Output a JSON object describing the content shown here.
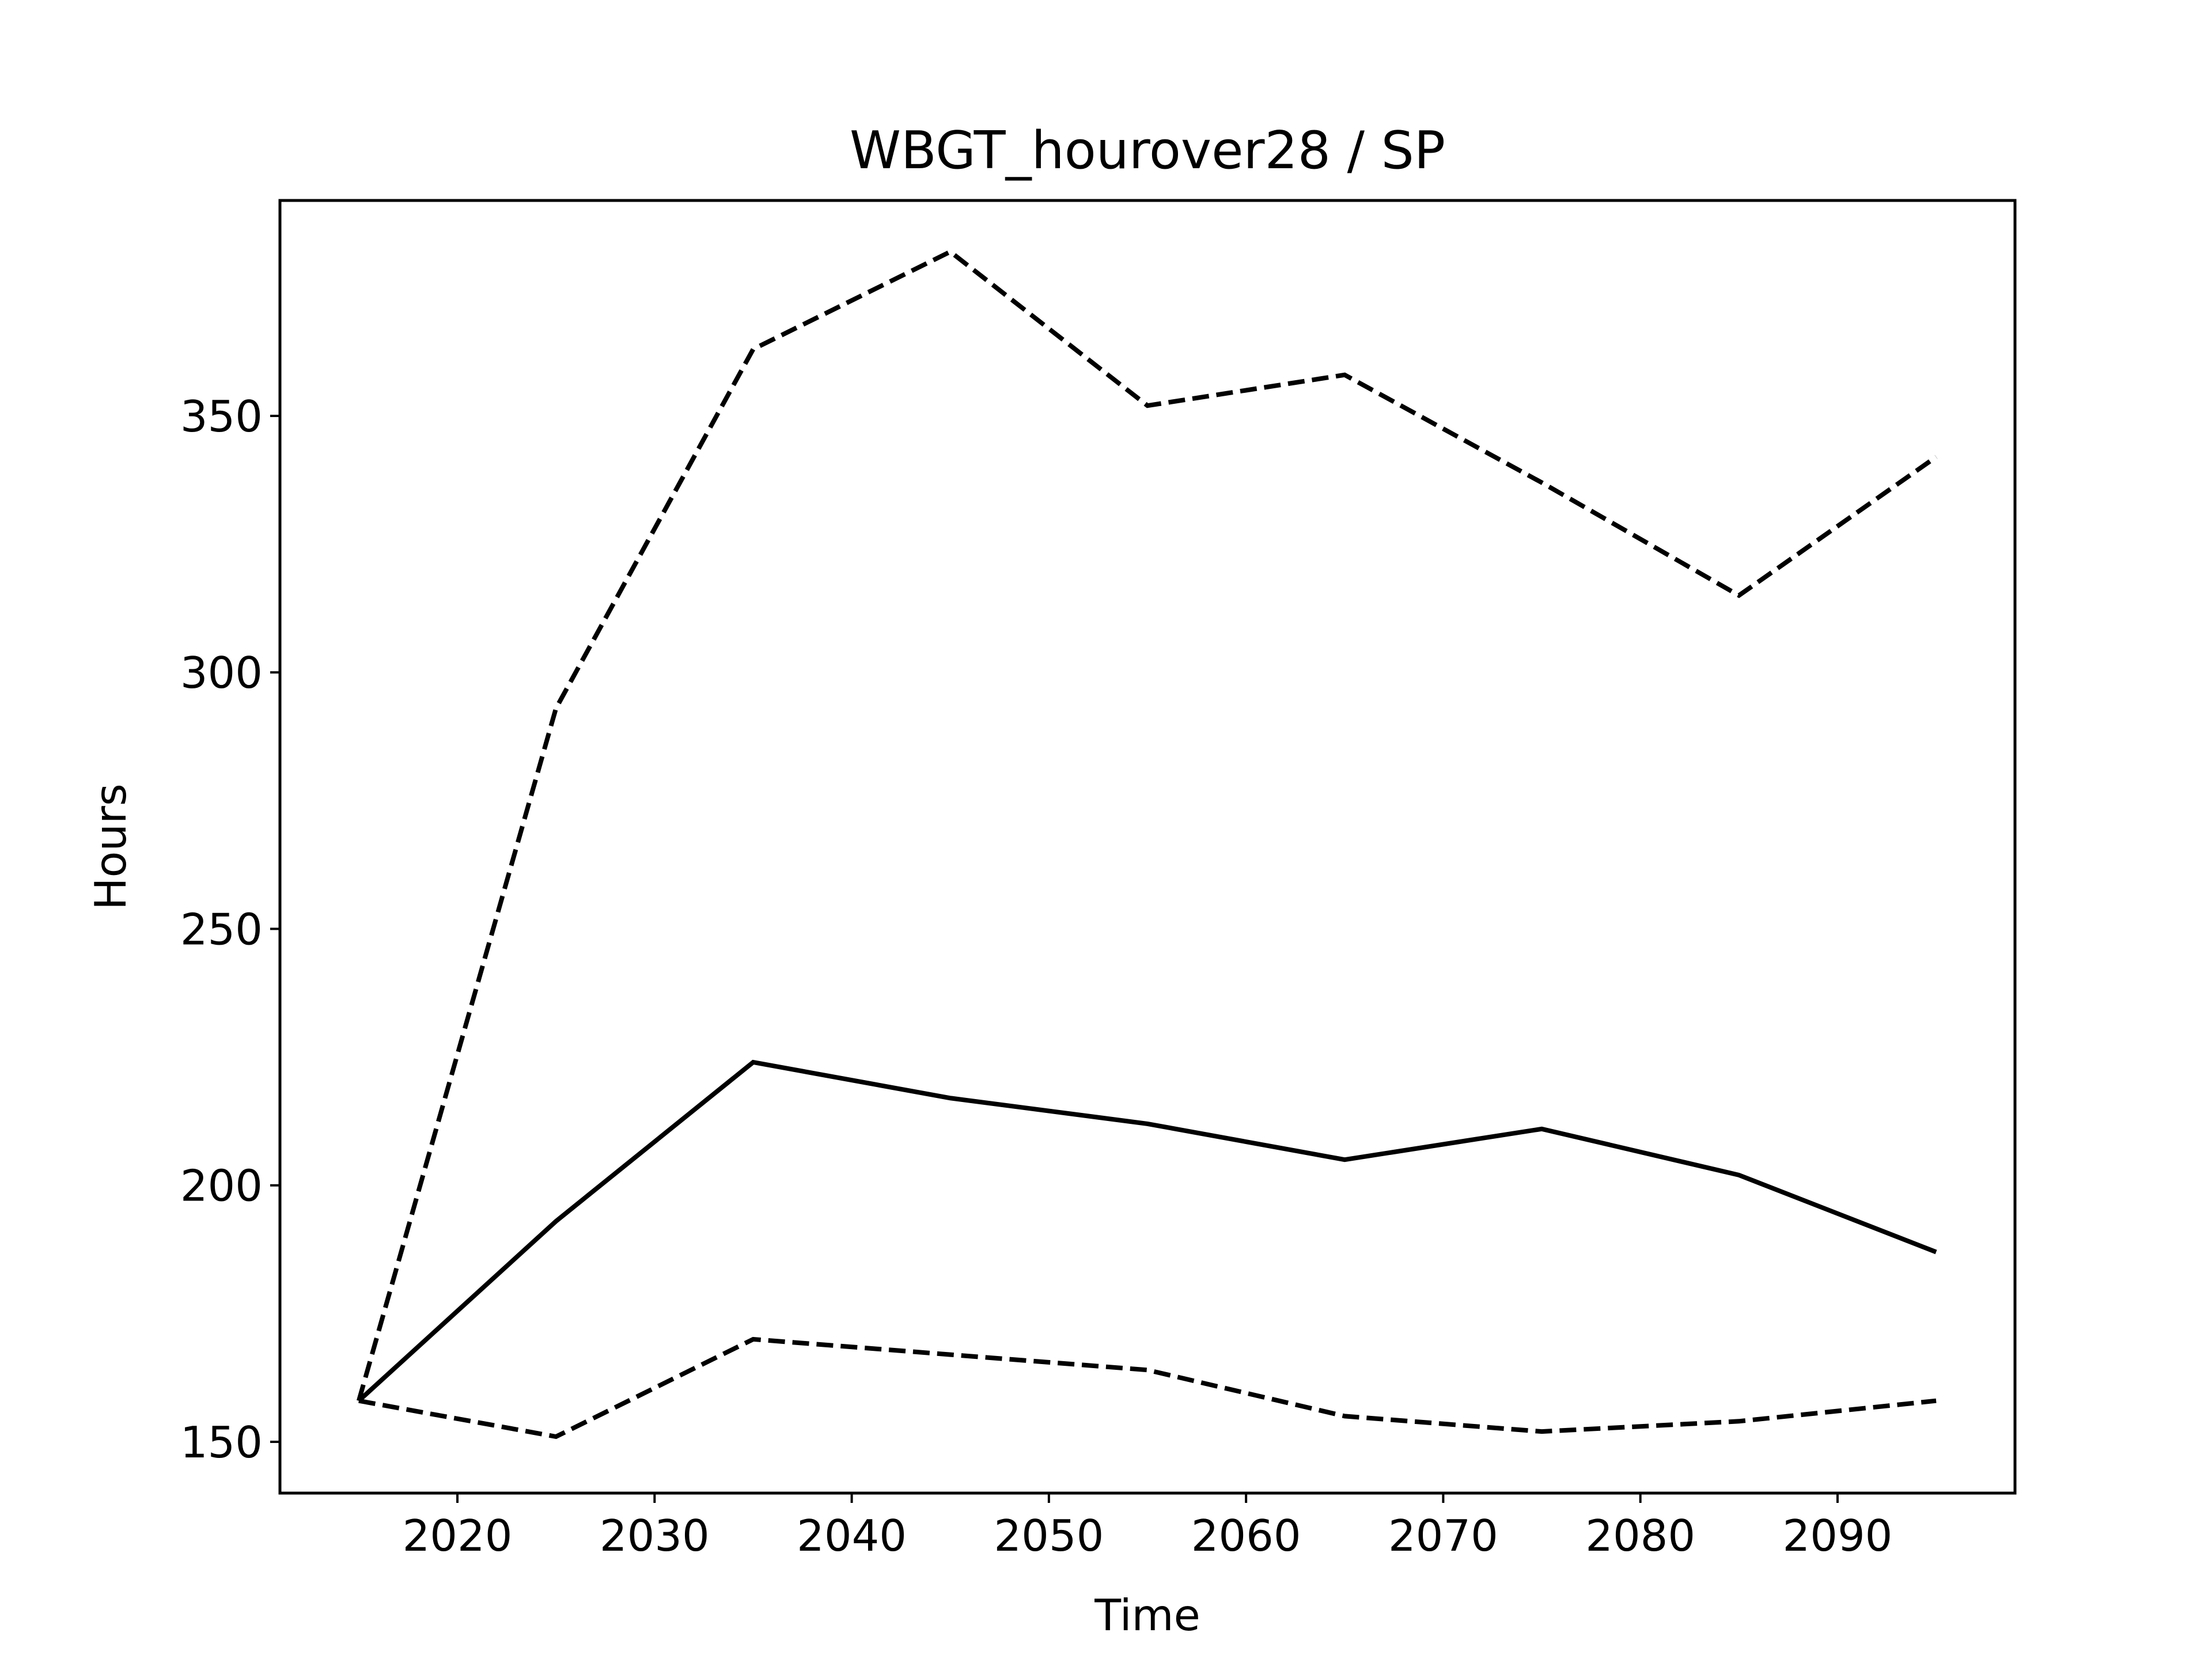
{
  "chart_data": {
    "type": "line",
    "title": "WBGT_hourover28 / SP",
    "xlabel": "Time",
    "ylabel": "Hours",
    "xlim": [
      2011,
      2099
    ],
    "ylim": [
      140,
      392
    ],
    "x_ticks": [
      2020,
      2030,
      2040,
      2050,
      2060,
      2070,
      2080,
      2090
    ],
    "y_ticks": [
      150,
      200,
      250,
      300,
      350
    ],
    "grid": false,
    "x": [
      2015,
      2025,
      2035,
      2045,
      2055,
      2065,
      2075,
      2085,
      2095
    ],
    "series": [
      {
        "style": "dashed",
        "color": "#000000",
        "values": [
          158,
          293,
          363,
          382,
          352,
          358,
          337,
          315,
          342
        ]
      },
      {
        "style": "solid",
        "color": "#000000",
        "values": [
          158,
          193,
          224,
          217,
          212,
          205,
          211,
          202,
          187
        ]
      },
      {
        "style": "dashed",
        "color": "#000000",
        "values": [
          158,
          151,
          170,
          167,
          164,
          155,
          152,
          154,
          158
        ]
      }
    ]
  }
}
